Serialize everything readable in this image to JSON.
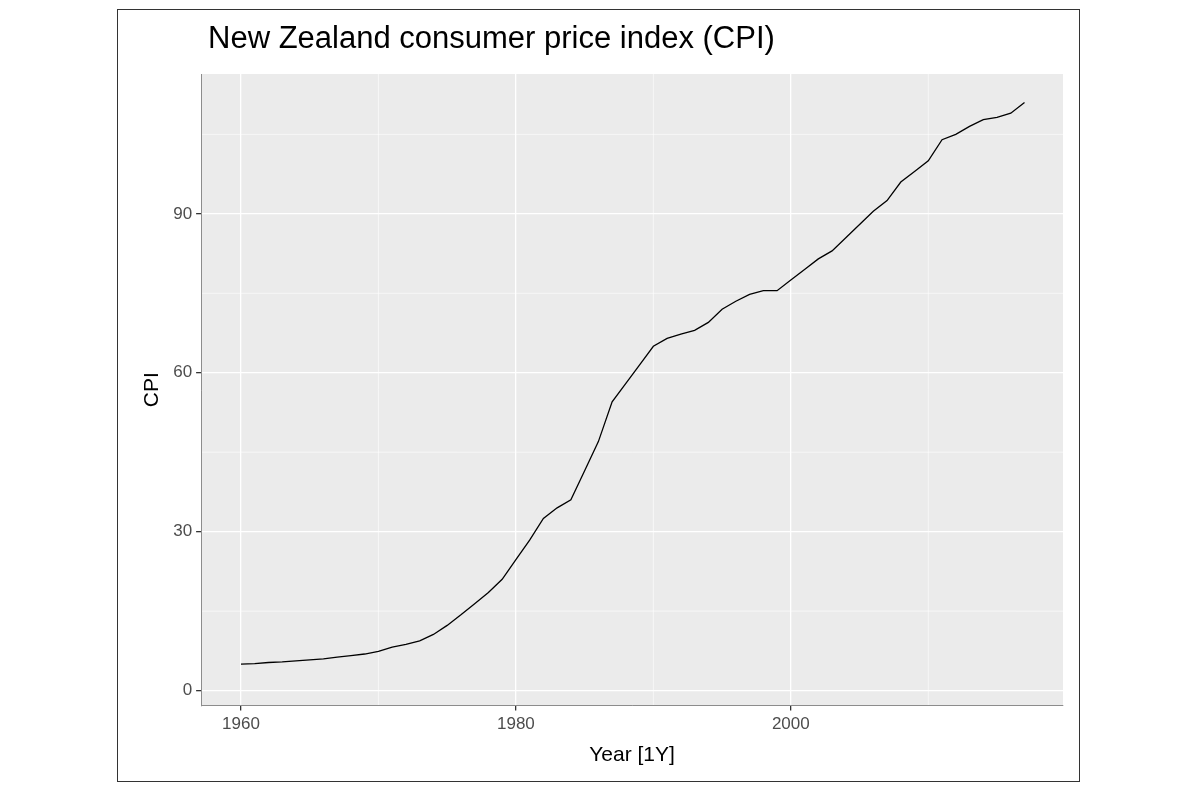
{
  "chart_data": {
    "type": "line",
    "title": "New Zealand consumer price index (CPI)",
    "xlabel": "Year [1Y]",
    "ylabel": "CPI",
    "x": [
      1960,
      1961,
      1962,
      1963,
      1964,
      1965,
      1966,
      1967,
      1968,
      1969,
      1970,
      1971,
      1972,
      1973,
      1974,
      1975,
      1976,
      1977,
      1978,
      1979,
      1980,
      1981,
      1982,
      1983,
      1984,
      1985,
      1986,
      1987,
      1988,
      1989,
      1990,
      1991,
      1992,
      1993,
      1994,
      1995,
      1996,
      1997,
      1998,
      1999,
      2000,
      2001,
      2002,
      2003,
      2004,
      2005,
      2006,
      2007,
      2008,
      2009,
      2010,
      2011,
      2012,
      2013,
      2014,
      2015,
      2016,
      2017
    ],
    "values": [
      5.0,
      5.1,
      5.3,
      5.4,
      5.6,
      5.8,
      6.0,
      6.3,
      6.6,
      6.9,
      7.4,
      8.2,
      8.7,
      9.4,
      10.6,
      12.3,
      14.3,
      16.4,
      18.5,
      21.0,
      24.7,
      28.4,
      32.5,
      34.5,
      36.0,
      41.5,
      47.0,
      54.5,
      58.0,
      61.5,
      65.0,
      66.5,
      67.3,
      68.0,
      69.5,
      72.0,
      73.5,
      74.8,
      75.5,
      75.5,
      77.5,
      79.5,
      81.5,
      83.0,
      85.5,
      88.0,
      90.5,
      92.5,
      96.0,
      98.0,
      100.0,
      104.0,
      105.0,
      106.5,
      107.8,
      108.2,
      109.0,
      111.0
    ],
    "color": "#000000",
    "xlim": [
      1957.1,
      2019.8
    ],
    "xticks": [
      1960,
      1980,
      2000
    ],
    "ylim": [
      -2.8,
      116.4
    ],
    "yticks": [
      0,
      30,
      60,
      90
    ],
    "grid": true
  }
}
